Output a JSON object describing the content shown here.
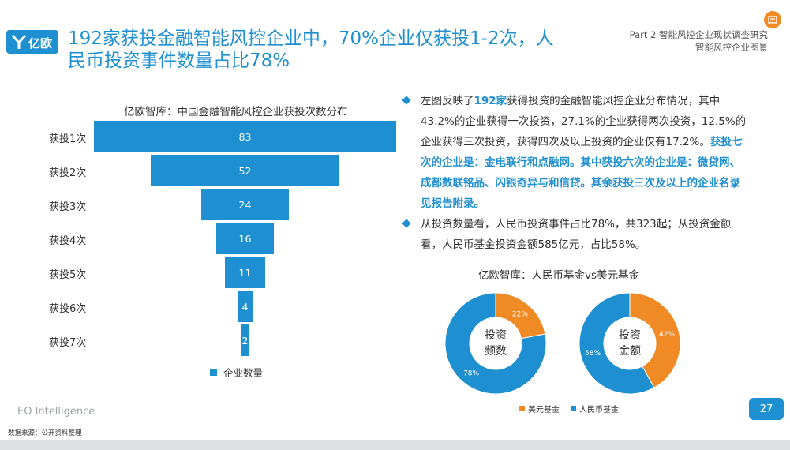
{
  "header": {
    "logo_text": "亿欧",
    "title_line1": "192家获投金融智能风控企业中，70%企业仅获投1-2次，人",
    "title_line2": "民币投资事件数量占比78%",
    "part_line1": "Part 2 智能风控企业现状调查研究",
    "part_line2": "智能风控企业图景"
  },
  "funnel": {
    "title": "亿欧智库：中国金融智能风控企业获投次数分布",
    "legend": "企业数量",
    "color": "#1e8fd0"
  },
  "chart_data": [
    {
      "type": "bar",
      "title": "亿欧智库：中国金融智能风控企业获投次数分布",
      "categories": [
        "获投1次",
        "获投2次",
        "获投3次",
        "获投4次",
        "获投5次",
        "获投6次",
        "获投7次"
      ],
      "series": [
        {
          "name": "企业数量",
          "values": [
            83,
            52,
            24,
            16,
            11,
            4,
            2
          ]
        }
      ]
    },
    {
      "type": "pie",
      "title": "亿欧智库：人民币基金vs美元基金",
      "center_label": [
        "投资",
        "频数"
      ],
      "labels": [
        "美元基金",
        "人民币基金"
      ],
      "values": [
        22,
        78
      ],
      "value_labels": [
        "22%",
        "78%"
      ],
      "colors": [
        "#f08a24",
        "#1e8fd0"
      ]
    },
    {
      "type": "pie",
      "title": "亿欧智库：人民币基金vs美元基金",
      "center_label": [
        "投资",
        "金额"
      ],
      "labels": [
        "美元基金",
        "人民币基金"
      ],
      "values": [
        42,
        58
      ],
      "value_labels": [
        "42%",
        "58%"
      ],
      "colors": [
        "#f08a24",
        "#1e8fd0"
      ]
    }
  ],
  "text": {
    "b1_part1": "左图反映了",
    "b1_hl": "192家",
    "b1_part2": "获得投资的金融智能风控企业分布情况，其中43.2%的企业获得一次投资，27.1%的企业获得两次投资，12.5%的企业获得三次投资，获得四次及以上投资的企业仅有17.2%。",
    "b1_bold": "获投七次的企业是：金电联行和点融网。其中获投六次的企业是：微贷网、成都数联铭品、闪银奇异与和信贷。其余获投三次及以上的企业名录见报告附录。",
    "b2": "从投资数量看，人民币投资事件占比78%，共323起；从投资金额看，人民币基金投资金额585亿元，占比58%。"
  },
  "donuts": {
    "title": "亿欧智库：人民币基金vs美元基金",
    "legend_usd": "美元基金",
    "legend_rmb": "人民币基金"
  },
  "footer": {
    "brand": "EO Intelligence",
    "source": "数据来源：公开资料整理",
    "page": "27"
  }
}
